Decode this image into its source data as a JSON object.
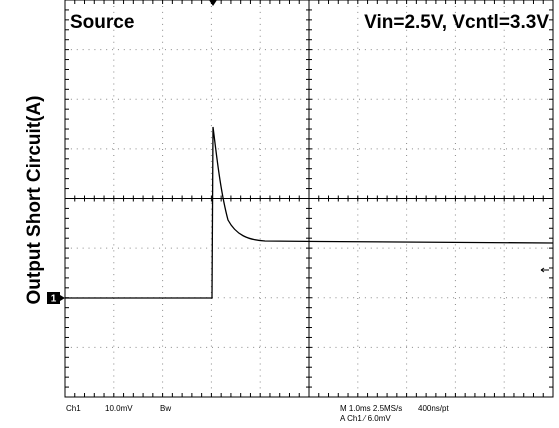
{
  "screen": {
    "title_left": "Source",
    "title_right": "Vin=2.5V, Vcntl=3.3V",
    "y_label": "Output Short Circuit(A)",
    "channel_marker": "1",
    "status": {
      "channel": "Ch1",
      "scale": "10.0mV",
      "bandwidth": "Bw",
      "timebase": "M 1.0ms 2.5MS/s",
      "resolution": "400ns/pt",
      "trigger": "A Ch1 ⁄ 6.0mV"
    }
  }
}
